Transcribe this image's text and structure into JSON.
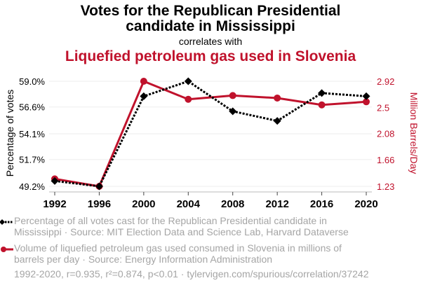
{
  "header": {
    "title": "Votes for the Republican Presidential candidate in Mississippi",
    "title_line1": "Votes for the Republican Presidential",
    "title_line2": "candidate in Mississippi",
    "connector": "correlates with",
    "title2": "Liquefied petroleum gas used in Slovenia"
  },
  "colors": {
    "series1": "#000000",
    "series2": "#c0122c",
    "muted_text": "#a5a5a5",
    "grid": "#eeeeee"
  },
  "chart_data": {
    "type": "line",
    "title": "Votes for the Republican Presidential candidate in Mississippi correlates with Liquefied petroleum gas used in Slovenia",
    "x": [
      1992,
      1996,
      2000,
      2004,
      2008,
      2012,
      2016,
      2020
    ],
    "x_tick_labels": [
      "1992",
      "1996",
      "2000",
      "2004",
      "2008",
      "2012",
      "2016",
      "2020"
    ],
    "ylabel": "Percentage of votes",
    "y2label": "Million Barrels/Day",
    "ylim": [
      49.2,
      59.0
    ],
    "y2lim": [
      1.23,
      2.92
    ],
    "y_tick_labels": [
      "59.0%",
      "56.6%",
      "54.1%",
      "51.7%",
      "49.2%"
    ],
    "y_ticks": [
      59.0,
      56.6,
      54.1,
      51.7,
      49.2
    ],
    "y2_tick_labels": [
      "2.92",
      "2.5",
      "2.08",
      "1.66",
      "1.23"
    ],
    "y2_ticks": [
      2.92,
      2.5,
      2.08,
      1.66,
      1.23
    ],
    "grid": true,
    "series": [
      {
        "name": "Percentage of all votes cast for the Republican Presidential candidate in Mississippi",
        "axis": "left",
        "style": "dotted",
        "marker": "diamond",
        "values": [
          49.7,
          49.2,
          57.6,
          59.0,
          56.2,
          55.3,
          57.9,
          57.6
        ]
      },
      {
        "name": "Volume of liquefied petroleum gas used consumed in Slovenia in millions of barrels per day",
        "axis": "right",
        "style": "solid",
        "marker": "circle",
        "values": [
          1.35,
          1.23,
          2.92,
          2.63,
          2.69,
          2.65,
          2.54,
          2.59
        ]
      }
    ]
  },
  "legend": [
    {
      "line1": "Percentage of all votes cast for the Republican Presidential candidate in",
      "line2": "Mississippi · Source: MIT Election Data and Science Lab, Harvard Dataverse"
    },
    {
      "line1": "Volume of liquefied petroleum gas used consumed in Slovenia in millions of",
      "line2": "barrels per day · Source: Energy Information Administration"
    }
  ],
  "footer": "1992-2020, r=0.935, r²=0.874, p<0.01 · tylervigen.com/spurious/correlation/37242"
}
